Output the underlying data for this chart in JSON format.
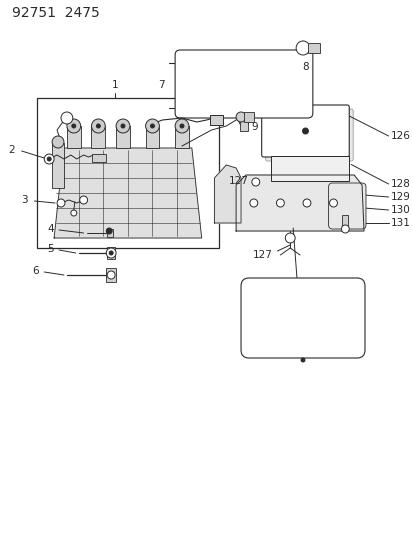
{
  "title": "92751  2475",
  "bg_color": "#ffffff",
  "line_color": "#2a2a2a",
  "label_fontsize": 7.5,
  "title_fontsize": 10
}
